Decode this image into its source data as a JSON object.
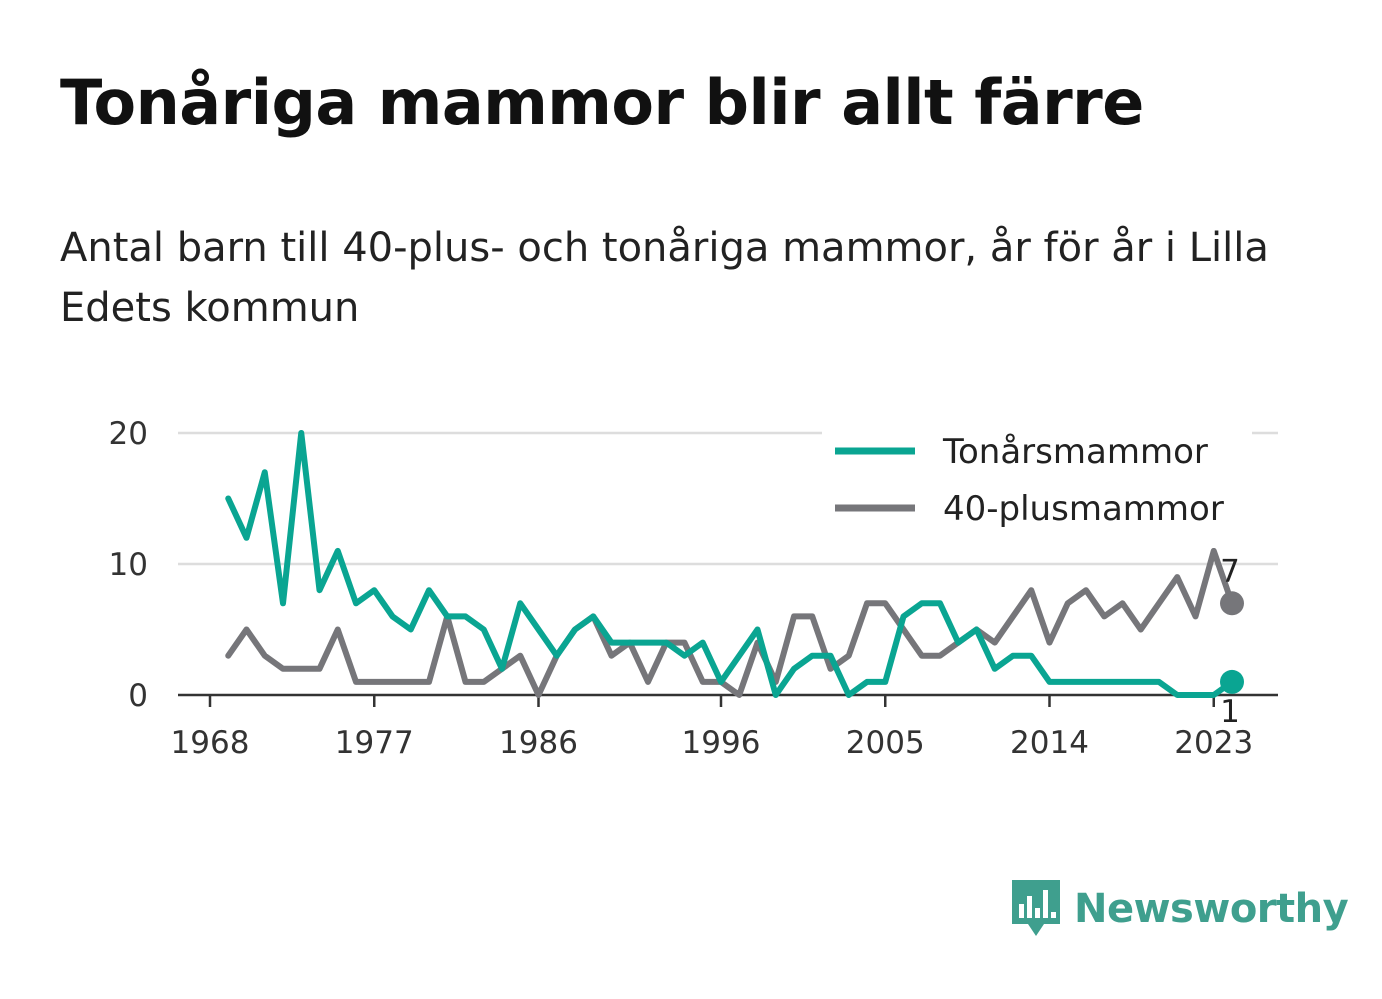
{
  "title": "Tonåriga mammor blir allt färre",
  "subtitle": "Antal barn till 40-plus- och tonåriga mammor, år för år i Lilla Edets kommun",
  "brand": "Newsworthy",
  "colors": {
    "teen": "#0aa592",
    "forty": "#76767a",
    "grid": "#dddddd",
    "axis": "#333333",
    "brand": "#3f9f8e"
  },
  "chart_data": {
    "type": "line",
    "title": "Tonåriga mammor blir allt färre",
    "subtitle": "Antal barn till 40-plus- och tonåriga mammor, år för år i Lilla Edets kommun",
    "xlabel": "",
    "ylabel": "",
    "xlim": [
      1968,
      2024
    ],
    "ylim": [
      0,
      20
    ],
    "x_ticks": [
      1968,
      1977,
      1986,
      1996,
      2005,
      2014,
      2023
    ],
    "y_ticks": [
      0,
      10,
      20
    ],
    "grid": "horizontal",
    "legend_position": "top-right",
    "x": [
      1969,
      1970,
      1971,
      1972,
      1973,
      1974,
      1975,
      1976,
      1977,
      1978,
      1979,
      1980,
      1981,
      1982,
      1983,
      1984,
      1985,
      1986,
      1987,
      1988,
      1989,
      1990,
      1991,
      1992,
      1993,
      1994,
      1995,
      1996,
      1997,
      1998,
      1999,
      2000,
      2001,
      2002,
      2003,
      2004,
      2005,
      2006,
      2007,
      2008,
      2009,
      2010,
      2011,
      2012,
      2013,
      2014,
      2015,
      2016,
      2017,
      2018,
      2019,
      2020,
      2021,
      2022,
      2023,
      2024
    ],
    "series": [
      {
        "name": "Tonårsmammor",
        "color": "#0aa592",
        "values": [
          15,
          12,
          17,
          7,
          20,
          8,
          11,
          7,
          8,
          6,
          5,
          8,
          6,
          6,
          5,
          2,
          7,
          5,
          3,
          5,
          6,
          4,
          4,
          4,
          4,
          3,
          4,
          1,
          3,
          5,
          0,
          2,
          3,
          3,
          0,
          1,
          1,
          6,
          7,
          7,
          4,
          5,
          2,
          3,
          3,
          1,
          1,
          1,
          1,
          1,
          1,
          1,
          0,
          0,
          0,
          1
        ],
        "end_label": "1"
      },
      {
        "name": "40-plusmammor",
        "color": "#76767a",
        "values": [
          3,
          5,
          3,
          2,
          2,
          2,
          5,
          1,
          1,
          1,
          1,
          1,
          6,
          1,
          1,
          2,
          3,
          0,
          3,
          5,
          6,
          3,
          4,
          1,
          4,
          4,
          1,
          1,
          0,
          4,
          1,
          6,
          6,
          2,
          3,
          7,
          7,
          5,
          3,
          3,
          4,
          5,
          4,
          6,
          8,
          4,
          7,
          8,
          6,
          7,
          5,
          7,
          9,
          6,
          11,
          7
        ],
        "end_label": "7"
      }
    ]
  }
}
